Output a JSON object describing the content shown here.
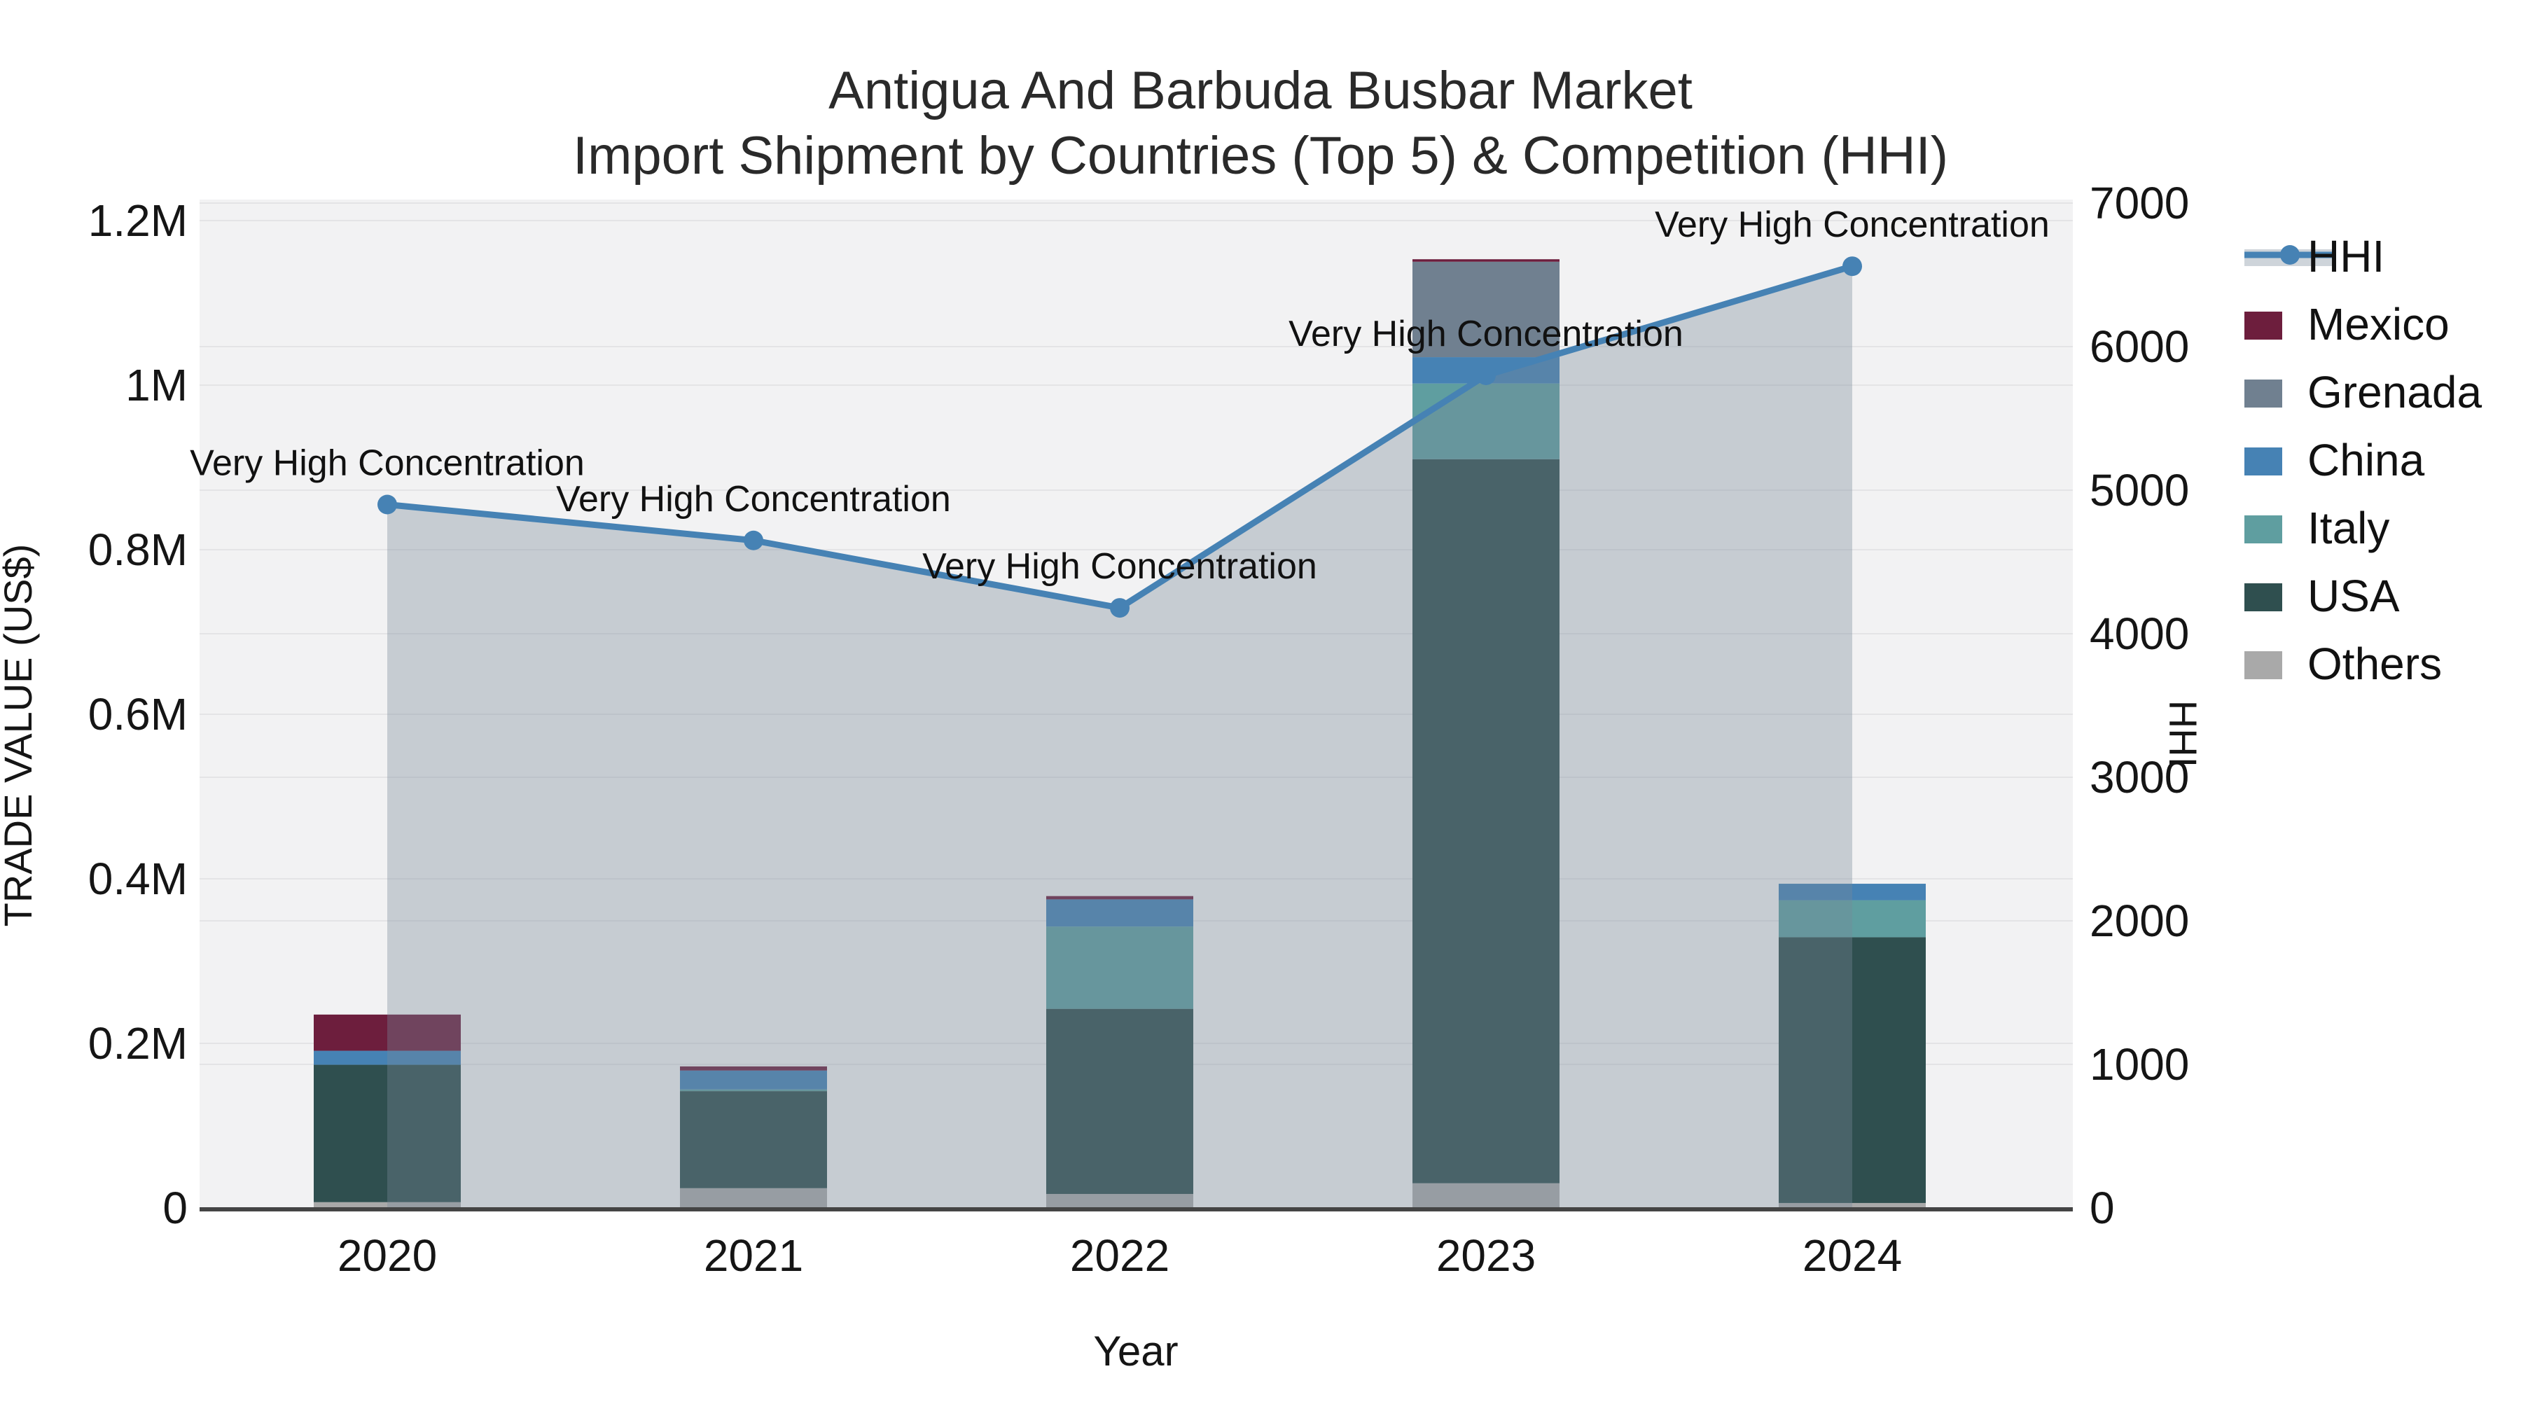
{
  "title": {
    "line1": "Antigua And Barbuda Busbar Market",
    "line2": "Import Shipment by Countries (Top 5) & Competition (HHI)"
  },
  "axes": {
    "x": {
      "title": "Year",
      "categories": [
        "2020",
        "2021",
        "2022",
        "2023",
        "2024"
      ]
    },
    "y_left": {
      "title": "TRADE VALUE (US$)",
      "tick_labels": [
        "0",
        "0.2M",
        "0.4M",
        "0.6M",
        "0.8M",
        "1M",
        "1.2M"
      ],
      "tick_values": [
        0,
        200000,
        400000,
        600000,
        800000,
        1000000,
        1200000
      ],
      "max": 1200000
    },
    "y_right": {
      "title": "HHI",
      "tick_labels": [
        "0",
        "1000",
        "2000",
        "3000",
        "4000",
        "5000",
        "6000",
        "7000"
      ],
      "tick_values": [
        0,
        1000,
        2000,
        3000,
        4000,
        5000,
        6000,
        7000
      ],
      "max": 7000
    }
  },
  "legend": {
    "items": [
      {
        "label": "HHI",
        "type": "line",
        "color": "#4682b4"
      },
      {
        "label": "Mexico",
        "type": "bar",
        "color": "#6d1e3d"
      },
      {
        "label": "Grenada",
        "type": "bar",
        "color": "#708090"
      },
      {
        "label": "China",
        "type": "bar",
        "color": "#4682b4"
      },
      {
        "label": "Italy",
        "type": "bar",
        "color": "#5f9ea0"
      },
      {
        "label": "USA",
        "type": "bar",
        "color": "#2f4f4f"
      },
      {
        "label": "Others",
        "type": "bar",
        "color": "#a9a9a9"
      }
    ]
  },
  "chart_data": {
    "type": [
      "bar-stacked",
      "line"
    ],
    "categories": [
      "2020",
      "2021",
      "2022",
      "2023",
      "2024"
    ],
    "series": [
      {
        "name": "Others",
        "color": "#a9a9a9",
        "values": [
          7000,
          24000,
          17000,
          30000,
          6000
        ]
      },
      {
        "name": "USA",
        "color": "#2f4f4f",
        "values": [
          167000,
          118000,
          225000,
          880000,
          323000
        ]
      },
      {
        "name": "Italy",
        "color": "#5f9ea0",
        "values": [
          0,
          2000,
          100000,
          92000,
          45000
        ]
      },
      {
        "name": "China",
        "color": "#4682b4",
        "values": [
          17000,
          23000,
          33000,
          32000,
          20000
        ]
      },
      {
        "name": "Grenada",
        "color": "#708090",
        "values": [
          0,
          0,
          0,
          116000,
          0
        ]
      },
      {
        "name": "Mexico",
        "color": "#6d1e3d",
        "values": [
          44000,
          5000,
          4000,
          3000,
          0
        ]
      }
    ],
    "hhi_series": {
      "name": "HHI",
      "color": "#4682b4",
      "area_fill": "rgba(119,136,153,0.36)",
      "values": [
        4900,
        4650,
        4180,
        5800,
        6560
      ]
    },
    "annotations": [
      {
        "x": "2020",
        "text": "Very High Concentration"
      },
      {
        "x": "2021",
        "text": "Very High Concentration"
      },
      {
        "x": "2022",
        "text": "Very High Concentration"
      },
      {
        "x": "2023",
        "text": "Very High Concentration"
      },
      {
        "x": "2024",
        "text": "Very High Concentration"
      }
    ],
    "title": "Antigua And Barbuda Busbar Market — Import Shipment by Countries (Top 5) & Competition (HHI)",
    "xlabel": "Year",
    "ylabel_left": "TRADE VALUE (US$)",
    "ylabel_right": "HHI",
    "ylim_left": [
      0,
      1200000
    ],
    "ylim_right": [
      0,
      7000
    ],
    "grid": true,
    "legend_position": "right"
  },
  "colors": {
    "plot_background": "#f2f2f3",
    "paper_background": "#ffffff",
    "gridline": "#e4e4e6",
    "axis_line": "#444444",
    "text": "#151515",
    "title_text": "#2a2a2a"
  }
}
